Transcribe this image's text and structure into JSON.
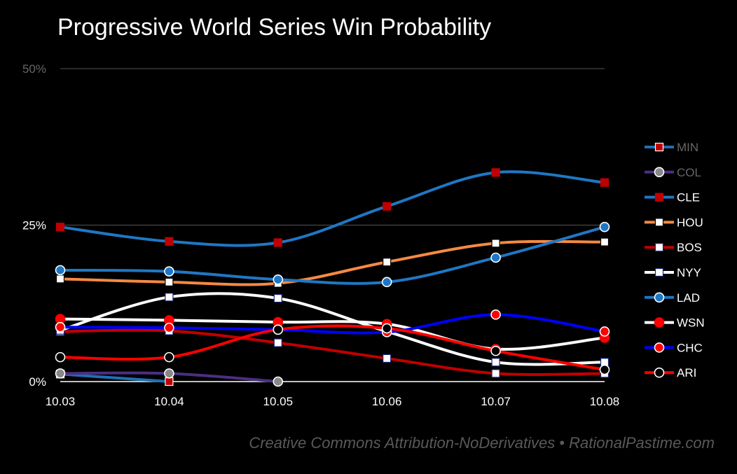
{
  "chart_data": {
    "type": "line",
    "title": "Progressive World Series Win Probability",
    "xlabel": "",
    "ylabel": "",
    "x": [
      "10.03",
      "10.04",
      "10.05",
      "10.06",
      "10.07",
      "10.08"
    ],
    "y_ticks": [
      "0%",
      "25%",
      "50%"
    ],
    "y_tick_values": [
      0,
      25,
      50
    ],
    "ylim": [
      0,
      50
    ],
    "legend_position": "right",
    "series": [
      {
        "name": "MIN",
        "line_color": "#1f6fb4",
        "marker": "square",
        "marker_fill": "#c00000",
        "marker_stroke": "#ffffff",
        "label_color": "#666666",
        "values": [
          1.2,
          0,
          null,
          null,
          null,
          null
        ]
      },
      {
        "name": "COL",
        "line_color": "#4b2e83",
        "marker": "circle",
        "marker_fill": "#888888",
        "marker_stroke": "#ffffff",
        "label_color": "#666666",
        "values": [
          1.3,
          1.3,
          0,
          null,
          null,
          null
        ]
      },
      {
        "name": "CLE",
        "line_color": "#1f77c4",
        "marker": "square",
        "marker_fill": "#c00000",
        "marker_stroke": "#c00000",
        "label_color": "#ffffff",
        "values": [
          24.7,
          22.4,
          22.2,
          28.0,
          33.4,
          31.8
        ]
      },
      {
        "name": "HOU",
        "line_color": "#f58a42",
        "marker": "square",
        "marker_fill": "#ffffff",
        "marker_stroke": "#000000",
        "label_color": "#ffffff",
        "values": [
          16.4,
          15.9,
          15.7,
          19.1,
          22.1,
          22.3
        ]
      },
      {
        "name": "BOS",
        "line_color": "#c00000",
        "marker": "square",
        "marker_fill": "#ffffff",
        "marker_stroke": "#1a237e",
        "label_color": "#ffffff",
        "values": [
          8.0,
          8.1,
          6.2,
          3.7,
          1.3,
          1.3
        ]
      },
      {
        "name": "NYY",
        "line_color": "#ffffff",
        "marker": "square",
        "marker_fill": "#ffffff",
        "marker_stroke": "#1a237e",
        "label_color": "#ffffff",
        "values": [
          8.2,
          13.5,
          13.3,
          8.0,
          3.1,
          3.1
        ]
      },
      {
        "name": "LAD",
        "line_color": "#1f77c4",
        "marker": "circle",
        "marker_fill": "#1f77c4",
        "marker_stroke": "#ffffff",
        "label_color": "#ffffff",
        "values": [
          17.8,
          17.6,
          16.3,
          15.9,
          19.8,
          24.7
        ]
      },
      {
        "name": "WSN",
        "line_color": "#ffffff",
        "marker": "circle",
        "marker_fill": "#ff0000",
        "marker_stroke": "#ff0000",
        "label_color": "#ffffff",
        "values": [
          10.0,
          9.8,
          9.5,
          9.2,
          5.2,
          7.0
        ]
      },
      {
        "name": "CHC",
        "line_color": "#0000ff",
        "marker": "circle",
        "marker_fill": "#ff0000",
        "marker_stroke": "#ffffff",
        "label_color": "#ffffff",
        "values": [
          8.7,
          8.6,
          8.3,
          7.9,
          10.7,
          8.0
        ]
      },
      {
        "name": "ARI",
        "line_color": "#ff0000",
        "marker": "circle",
        "marker_fill": "#000000",
        "marker_stroke": "#ffffff",
        "label_color": "#ffffff",
        "values": [
          3.9,
          3.9,
          8.3,
          8.5,
          4.9,
          1.9
        ]
      }
    ]
  },
  "credit": "Creative Commons Attribution-NoDerivatives • RationalPastime.com",
  "colors": {
    "background": "#000000",
    "gridline": "#555555",
    "axis_line": "#ffffff",
    "tick_text": "#ffffff",
    "top_tick_text": "#666666",
    "credit_text": "#595959"
  }
}
